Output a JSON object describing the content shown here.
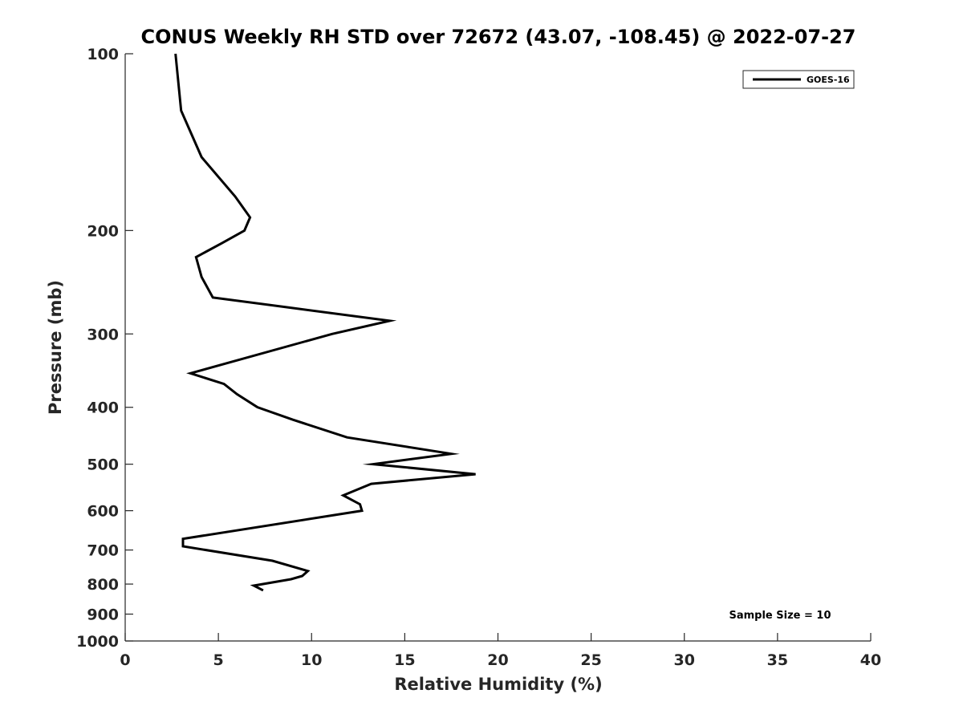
{
  "chart_data": {
    "type": "line",
    "title": "CONUS Weekly RH STD over 72672 (43.07, -108.45) @ 2022-07-27",
    "xlabel": "Relative Humidity (%)",
    "ylabel": "Pressure (mb)",
    "xlim": [
      0,
      40
    ],
    "ylim": [
      100,
      1000
    ],
    "yscale": "log",
    "y_reversed": true,
    "grid": false,
    "legend_position": "top-right",
    "x_ticks": [
      0,
      5,
      10,
      15,
      20,
      25,
      30,
      35,
      40
    ],
    "y_ticks": [
      100,
      200,
      300,
      400,
      500,
      600,
      700,
      800,
      900,
      1000
    ],
    "x_tick_labels": [
      "0",
      "5",
      "10",
      "15",
      "20",
      "25",
      "30",
      "35",
      "40"
    ],
    "y_tick_labels": [
      "100",
      "200",
      "300",
      "400",
      "500",
      "600",
      "700",
      "800",
      "900",
      "1000"
    ],
    "series": [
      {
        "name": "GOES-16",
        "color": "#000000",
        "points": [
          {
            "x": 2.7,
            "p": 100
          },
          {
            "x": 3.0,
            "p": 125
          },
          {
            "x": 4.1,
            "p": 150
          },
          {
            "x": 5.9,
            "p": 175
          },
          {
            "x": 6.7,
            "p": 190
          },
          {
            "x": 6.4,
            "p": 200
          },
          {
            "x": 5.2,
            "p": 210
          },
          {
            "x": 3.8,
            "p": 222
          },
          {
            "x": 4.1,
            "p": 240
          },
          {
            "x": 4.7,
            "p": 260
          },
          {
            "x": 14.2,
            "p": 285
          },
          {
            "x": 11.1,
            "p": 300
          },
          {
            "x": 3.5,
            "p": 350
          },
          {
            "x": 5.3,
            "p": 365
          },
          {
            "x": 6.0,
            "p": 380
          },
          {
            "x": 7.1,
            "p": 400
          },
          {
            "x": 9.0,
            "p": 420
          },
          {
            "x": 11.9,
            "p": 450
          },
          {
            "x": 17.5,
            "p": 480
          },
          {
            "x": 13.3,
            "p": 500
          },
          {
            "x": 18.8,
            "p": 520
          },
          {
            "x": 13.2,
            "p": 540
          },
          {
            "x": 11.7,
            "p": 565
          },
          {
            "x": 12.6,
            "p": 585
          },
          {
            "x": 12.7,
            "p": 600
          },
          {
            "x": 3.1,
            "p": 670
          },
          {
            "x": 3.1,
            "p": 690
          },
          {
            "x": 7.9,
            "p": 730
          },
          {
            "x": 9.8,
            "p": 760
          },
          {
            "x": 9.5,
            "p": 775
          },
          {
            "x": 8.9,
            "p": 785
          },
          {
            "x": 6.9,
            "p": 805
          },
          {
            "x": 7.4,
            "p": 820
          }
        ]
      }
    ],
    "annotations": [
      "Sample Size = 10"
    ]
  }
}
